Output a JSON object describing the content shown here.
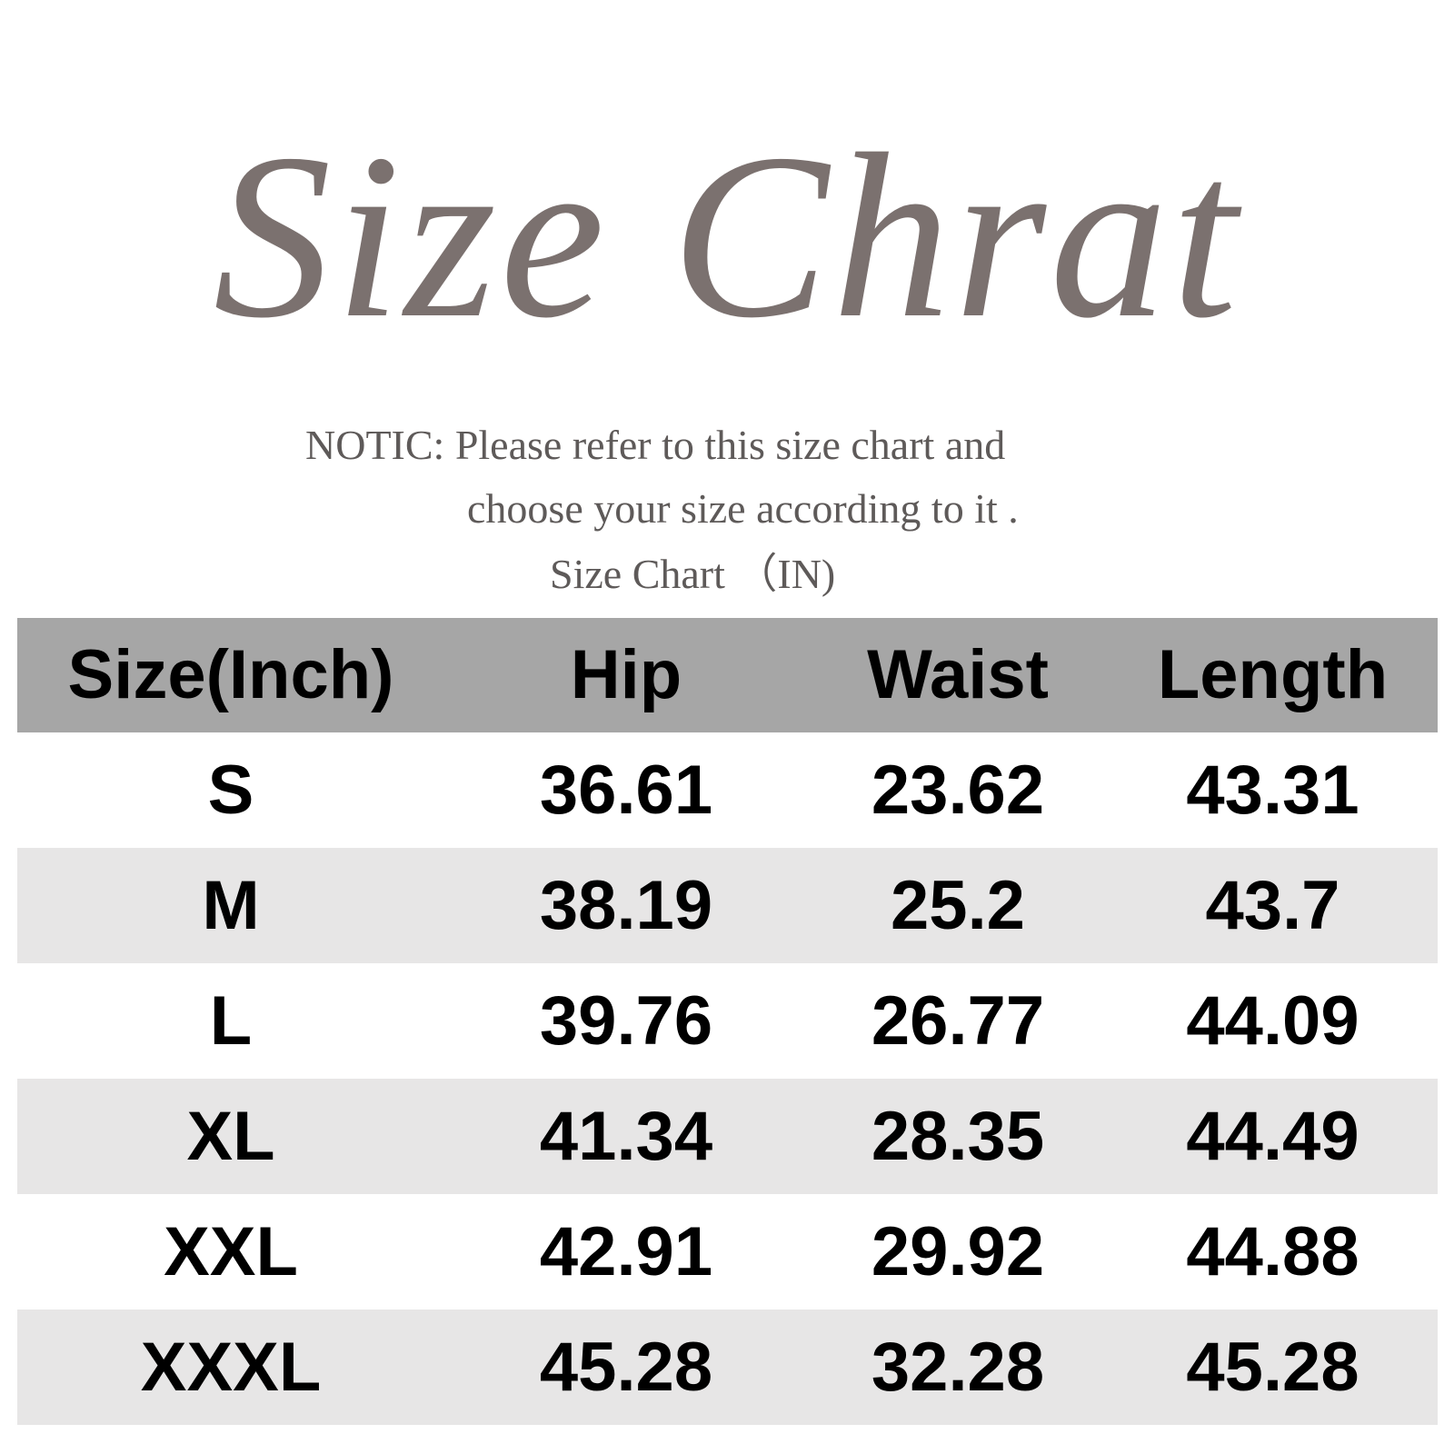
{
  "title": "Size Chrat",
  "notice": {
    "line1": "NOTIC: Please refer to this size chart and",
    "line2": "choose your size according to it .",
    "line3": "Size Chart （IN)"
  },
  "colors": {
    "title": "#7b716f",
    "header_bg": "#a6a6a6",
    "alt_row_bg": "#e7e6e6"
  },
  "table": {
    "headers": [
      "Size(Inch)",
      "Hip",
      "Waist",
      "Length"
    ],
    "rows": [
      [
        "S",
        "36.61",
        "23.62",
        "43.31"
      ],
      [
        "M",
        "38.19",
        "25.2",
        "43.7"
      ],
      [
        "L",
        "39.76",
        "26.77",
        "44.09"
      ],
      [
        "XL",
        "41.34",
        "28.35",
        "44.49"
      ],
      [
        "XXL",
        "42.91",
        "29.92",
        "44.88"
      ],
      [
        "XXXL",
        "45.28",
        "32.28",
        "45.28"
      ]
    ]
  }
}
